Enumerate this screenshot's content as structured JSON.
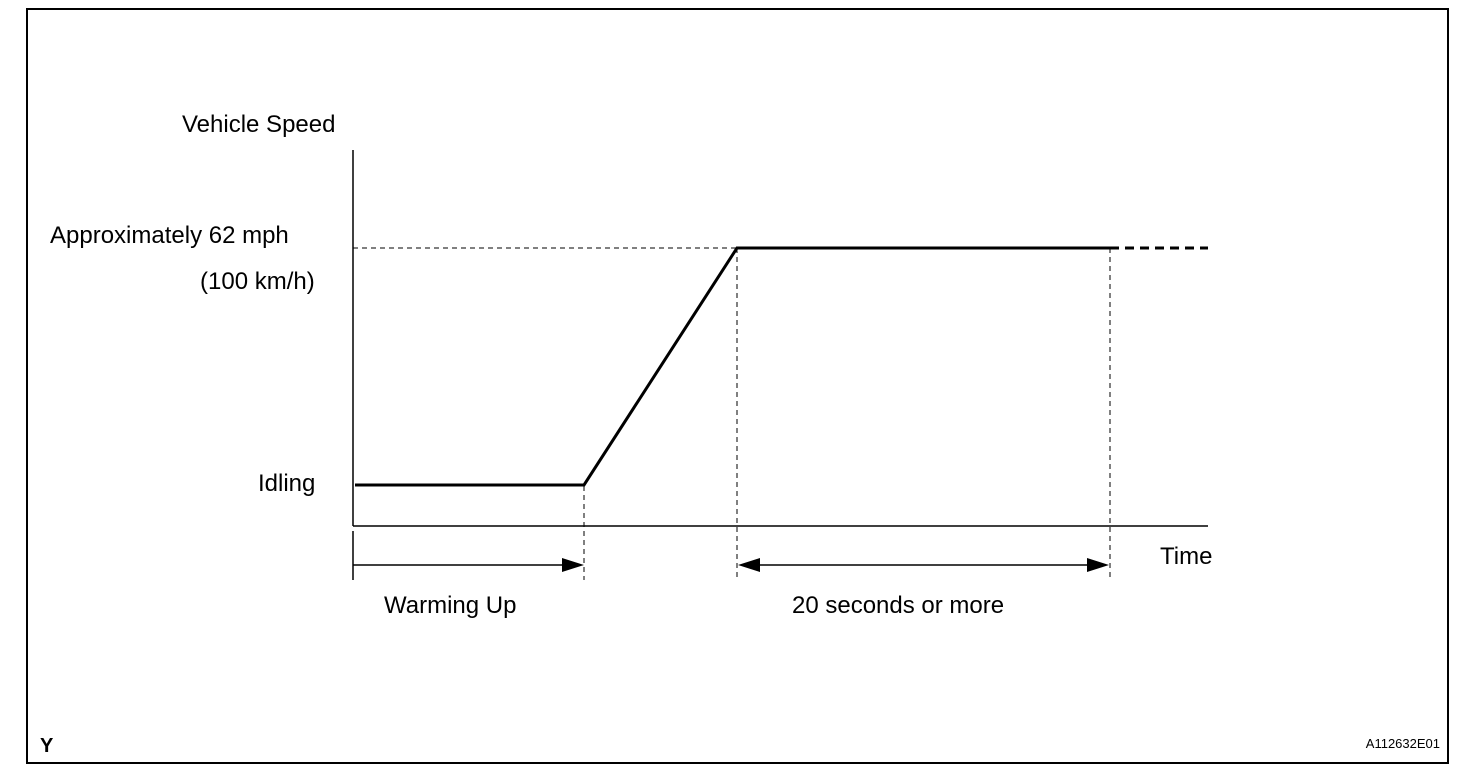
{
  "diagram": {
    "y_axis_label": "Vehicle Speed",
    "x_axis_label": "Time",
    "levels": {
      "high_line1": "Approximately 62 mph",
      "high_line2": "(100 km/h)",
      "low": "Idling"
    },
    "phases": {
      "warm_up": "Warming Up",
      "hold": "20 seconds or more"
    },
    "corner_mark": "Y",
    "figure_code": "A112632E01"
  }
}
